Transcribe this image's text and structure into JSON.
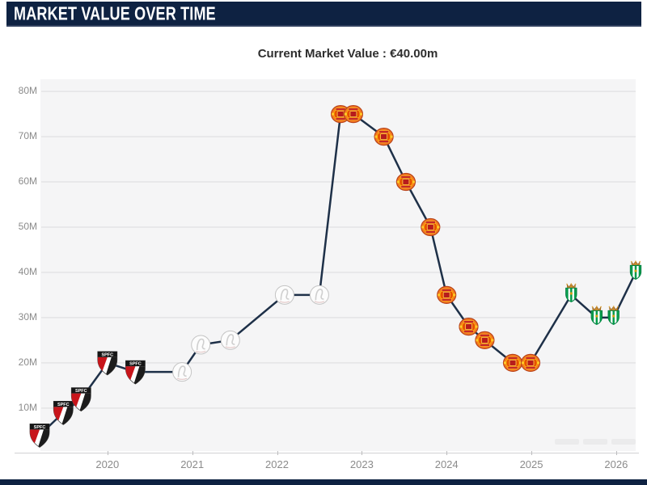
{
  "header": {
    "title": "MARKET VALUE OVER TIME"
  },
  "subtitle": {
    "text": "Current Market Value : €40.00m"
  },
  "colors": {
    "header_bg": "#0e2242",
    "page_bg": "#ffffff",
    "plot_bg": "#f5f5f6",
    "gridline": "#e3e3e5",
    "axis_label": "#8b8b8b",
    "line": "#1e3048",
    "bottom_strip": "#0e2242"
  },
  "chart_data": {
    "type": "line",
    "title": "Market value over time",
    "subtitle": "Current Market Value : €40.00m",
    "current_value": "€40.00m",
    "grid": true,
    "legend": false,
    "line_color": "#1e3048",
    "x_axis": {
      "label": "",
      "ticks": [
        2020,
        2021,
        2022,
        2023,
        2024,
        2025,
        2026
      ],
      "tick_labels": [
        "2020",
        "2021",
        "2022",
        "2023",
        "2024",
        "2025",
        "2026"
      ],
      "range": [
        2019.21,
        2026.23
      ]
    },
    "y_axis": {
      "label": "",
      "unit": "million €",
      "ticks": [
        10,
        20,
        30,
        40,
        50,
        60,
        70,
        80
      ],
      "tick_labels": [
        "10M",
        "20M",
        "30M",
        "40M",
        "50M",
        "60M",
        "70M",
        "80M"
      ],
      "range": [
        0.5,
        82.7
      ]
    },
    "series": [
      {
        "name": "Market value (€ million)",
        "points": [
          {
            "x": 2019.2,
            "y": 4,
            "club": "sao-paulo"
          },
          {
            "x": 2019.48,
            "y": 9,
            "club": "sao-paulo"
          },
          {
            "x": 2019.69,
            "y": 12,
            "club": "sao-paulo"
          },
          {
            "x": 2020.0,
            "y": 20,
            "club": "sao-paulo"
          },
          {
            "x": 2020.33,
            "y": 18,
            "club": "sao-paulo"
          },
          {
            "x": 2020.88,
            "y": 18,
            "club": "ajax"
          },
          {
            "x": 2021.1,
            "y": 24,
            "club": "ajax"
          },
          {
            "x": 2021.45,
            "y": 25,
            "club": "ajax"
          },
          {
            "x": 2022.09,
            "y": 35,
            "club": "ajax"
          },
          {
            "x": 2022.5,
            "y": 35,
            "club": "ajax"
          },
          {
            "x": 2022.75,
            "y": 75,
            "club": "man-united"
          },
          {
            "x": 2022.9,
            "y": 75,
            "club": "man-united"
          },
          {
            "x": 2023.26,
            "y": 70,
            "club": "man-united"
          },
          {
            "x": 2023.52,
            "y": 60,
            "club": "man-united"
          },
          {
            "x": 2023.81,
            "y": 50,
            "club": "man-united"
          },
          {
            "x": 2024.0,
            "y": 35,
            "club": "man-united"
          },
          {
            "x": 2024.26,
            "y": 28,
            "club": "man-united"
          },
          {
            "x": 2024.45,
            "y": 25,
            "club": "man-united"
          },
          {
            "x": 2024.78,
            "y": 20,
            "club": "man-united"
          },
          {
            "x": 2024.99,
            "y": 20,
            "club": "man-united"
          },
          {
            "x": 2025.47,
            "y": 35,
            "club": "real-betis"
          },
          {
            "x": 2025.77,
            "y": 30,
            "club": "real-betis"
          },
          {
            "x": 2025.97,
            "y": 30,
            "club": "real-betis"
          },
          {
            "x": 2026.23,
            "y": 40,
            "club": "real-betis"
          }
        ]
      }
    ],
    "clubs": {
      "sao-paulo": {
        "name": "São Paulo FC",
        "crest_text": "SPFC",
        "colors": [
          "#c8151b",
          "#161616",
          "#ffffff"
        ]
      },
      "ajax": {
        "name": "Ajax",
        "crest_text": "",
        "colors": [
          "#fcfcfc",
          "#c4c4c4"
        ]
      },
      "man-united": {
        "name": "Manchester United",
        "crest_text": "",
        "colors": [
          "#f47b20",
          "#b9431a",
          "#ffca28"
        ]
      },
      "real-betis": {
        "name": "Real Betis",
        "crest_text": "",
        "colors": [
          "#009a49",
          "#c98a2e",
          "#ffffff"
        ]
      }
    }
  },
  "watermark": {
    "visible": true
  }
}
